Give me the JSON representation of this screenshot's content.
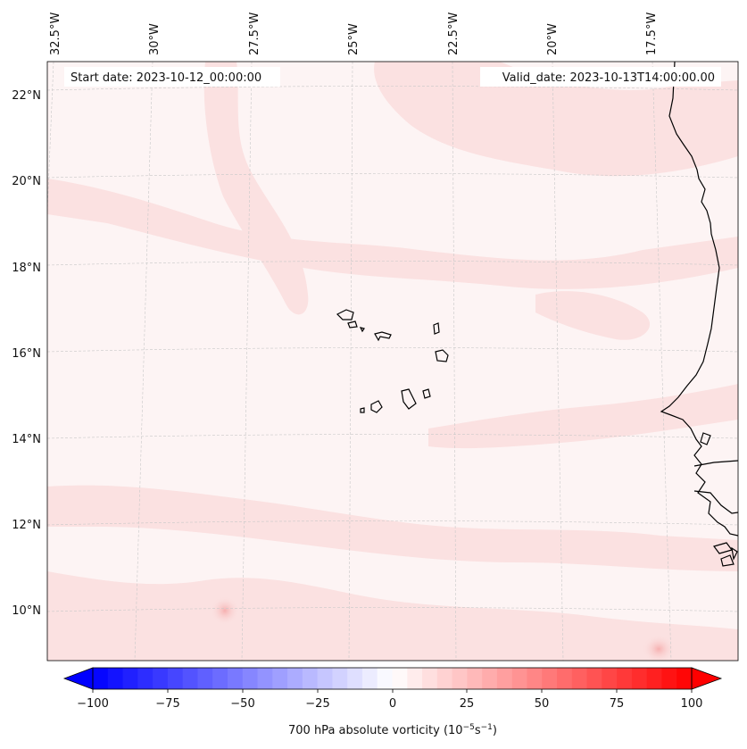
{
  "map": {
    "start_date": "Start date: 2023-10-12_00:00:00",
    "valid_date": "Valid_date: 2023-10-13T14:00:00.00",
    "lon_labels": [
      "32.5°W",
      "30°W",
      "27.5°W",
      "25°W",
      "22.5°W",
      "20°W",
      "17.5°W"
    ],
    "lat_labels": [
      "22°N",
      "20°N",
      "18°N",
      "16°N",
      "14°N",
      "12°N",
      "10°N"
    ],
    "background_color": "#fdf4f4",
    "pattern_color": "#fbe0e0",
    "coastline_color": "#000000",
    "gridline_color": "#bdbdbd"
  },
  "colorbar": {
    "label": "700 hPa absolute vorticity (10",
    "label_exp": "−5",
    "label_units": "s",
    "label_units_exp": "−1",
    "label_close": ")",
    "tick_labels": [
      "−100",
      "−75",
      "−50",
      "−25",
      "0",
      "25",
      "50",
      "75",
      "100"
    ],
    "min": -100,
    "max": 100,
    "step": 5,
    "low_color": "#0000ff",
    "mid_color": "#ffffff",
    "high_color": "#ff0000"
  }
}
